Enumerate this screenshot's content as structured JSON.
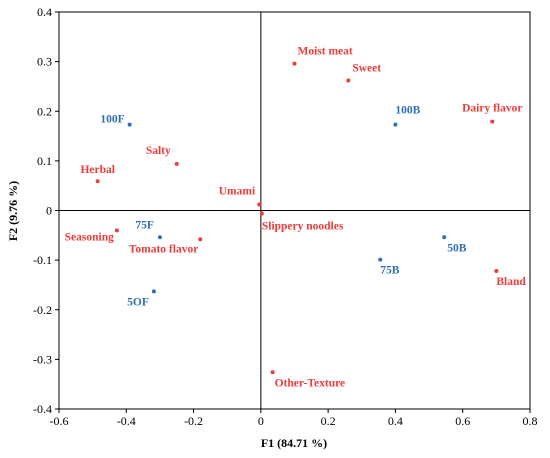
{
  "chart_data": {
    "type": "scatter",
    "xlabel": "F1 (84.71 %)",
    "ylabel": "F2 (9.76 %)",
    "xlim": [
      -0.6,
      0.8
    ],
    "ylim": [
      -0.4,
      0.4
    ],
    "xticks": [
      -0.6,
      -0.4,
      -0.2,
      0,
      0.2,
      0.4,
      0.6,
      0.8
    ],
    "yticks": [
      -0.4,
      -0.3,
      -0.2,
      -0.1,
      0,
      0.1,
      0.2,
      0.3,
      0.4
    ],
    "xtick_labels": [
      "-0.6",
      "-0.4",
      "-0.2",
      "0",
      "0.2",
      "0.4",
      "0.6",
      "0.8"
    ],
    "ytick_labels": [
      "-0.4",
      "-0.3",
      "-0.2",
      "-0.1",
      "0",
      "0.1",
      "0.2",
      "0.3",
      "0.4"
    ],
    "grid": false,
    "colors": {
      "attributes": "#ee3b3b",
      "samples": "#2f6db5",
      "axes": "#000000"
    },
    "attributes": [
      {
        "label": "Moist meat",
        "x": 0.1,
        "y": 0.296
      },
      {
        "label": "Sweet",
        "x": 0.26,
        "y": 0.262
      },
      {
        "label": "Dairy flavor",
        "x": 0.688,
        "y": 0.179
      },
      {
        "label": "Salty",
        "x": -0.25,
        "y": 0.094
      },
      {
        "label": "Herbal",
        "x": -0.485,
        "y": 0.059
      },
      {
        "label": "Umami",
        "x": -0.005,
        "y": 0.012
      },
      {
        "label": "Slippery noodles",
        "x": 0.003,
        "y": -0.006
      },
      {
        "label": "Seasoning",
        "x": -0.428,
        "y": -0.04
      },
      {
        "label": "Tomato flavor",
        "x": -0.18,
        "y": -0.058
      },
      {
        "label": "Bland",
        "x": 0.7,
        "y": -0.122
      },
      {
        "label": "Other-Texture",
        "x": 0.035,
        "y": -0.326
      }
    ],
    "samples": [
      {
        "label": "100F",
        "x": -0.39,
        "y": 0.173
      },
      {
        "label": "100B",
        "x": 0.4,
        "y": 0.173
      },
      {
        "label": "75F",
        "x": -0.3,
        "y": -0.054
      },
      {
        "label": "50B",
        "x": 0.545,
        "y": -0.054
      },
      {
        "label": "75B",
        "x": 0.355,
        "y": -0.099
      },
      {
        "label": "5OF",
        "x": -0.318,
        "y": -0.163
      }
    ]
  }
}
